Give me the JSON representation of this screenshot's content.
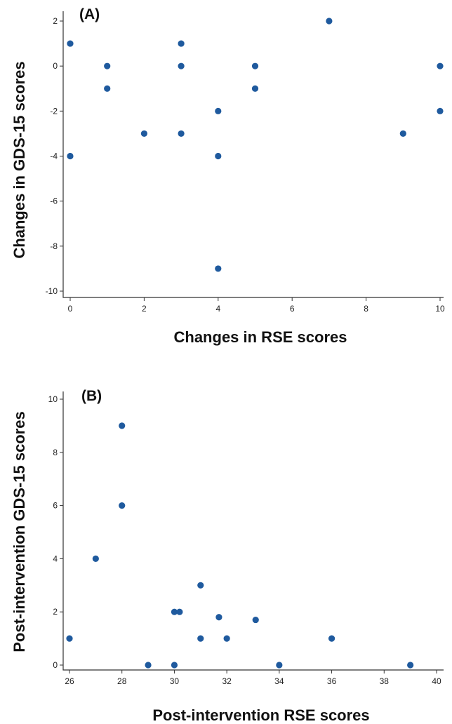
{
  "chart_data": [
    {
      "type": "scatter",
      "panel_label": "(A)",
      "xlabel": "Changes in RSE scores",
      "ylabel": "Changes in GDS-15 scores",
      "xlim": [
        0,
        10
      ],
      "ylim": [
        -10,
        2
      ],
      "xticks": [
        0,
        2,
        4,
        6,
        8,
        10
      ],
      "yticks": [
        2,
        0,
        -2,
        -4,
        -6,
        -8,
        -10
      ],
      "marker_color": "#1f5a9e",
      "grid": false,
      "points": [
        {
          "x": 0,
          "y": 1
        },
        {
          "x": 0,
          "y": -4
        },
        {
          "x": 1,
          "y": 0
        },
        {
          "x": 1,
          "y": -1
        },
        {
          "x": 2,
          "y": -3
        },
        {
          "x": 3,
          "y": 1
        },
        {
          "x": 3,
          "y": 0
        },
        {
          "x": 3,
          "y": -3
        },
        {
          "x": 4,
          "y": -2
        },
        {
          "x": 4,
          "y": -4
        },
        {
          "x": 4,
          "y": -9
        },
        {
          "x": 5,
          "y": 0
        },
        {
          "x": 5,
          "y": -1
        },
        {
          "x": 7,
          "y": 2
        },
        {
          "x": 9,
          "y": -3
        },
        {
          "x": 10,
          "y": 0
        },
        {
          "x": 10,
          "y": -2
        }
      ]
    },
    {
      "type": "scatter",
      "panel_label": "(B)",
      "xlabel": "Post-intervention RSE scores",
      "ylabel": "Post-intervention GDS-15 scores",
      "xlim": [
        26,
        40
      ],
      "ylim": [
        0,
        10
      ],
      "xticks": [
        26,
        28,
        30,
        32,
        34,
        36,
        38,
        40
      ],
      "yticks": [
        10,
        8,
        6,
        4,
        2,
        0
      ],
      "marker_color": "#1f5a9e",
      "grid": false,
      "points": [
        {
          "x": 26,
          "y": 1
        },
        {
          "x": 27,
          "y": 4
        },
        {
          "x": 28,
          "y": 9
        },
        {
          "x": 28,
          "y": 6
        },
        {
          "x": 29,
          "y": 0
        },
        {
          "x": 30,
          "y": 2
        },
        {
          "x": 30,
          "y": 0
        },
        {
          "x": 30.2,
          "y": 2
        },
        {
          "x": 31,
          "y": 3
        },
        {
          "x": 31,
          "y": 1
        },
        {
          "x": 31.7,
          "y": 1.8
        },
        {
          "x": 32,
          "y": 1
        },
        {
          "x": 33.1,
          "y": 1.7
        },
        {
          "x": 34,
          "y": 0
        },
        {
          "x": 36,
          "y": 1
        },
        {
          "x": 39,
          "y": 0
        }
      ]
    }
  ]
}
